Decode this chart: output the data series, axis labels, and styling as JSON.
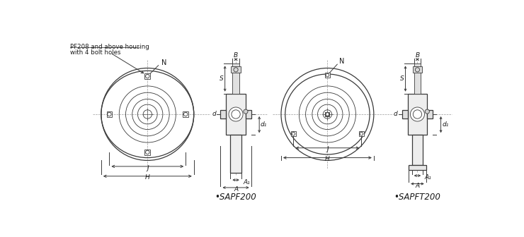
{
  "bg_color": "#ffffff",
  "line_color": "#3a3a3a",
  "dim_color": "#3a3a3a",
  "text_color": "#1a1a1a",
  "title_left": "•SAPF200",
  "title_right": "•SAPFT200",
  "note_line1": "PF208 and above housing",
  "note_line2": "with 4 bolt holes",
  "label_N": "N",
  "label_B": "B",
  "label_S": "S",
  "label_d": "d",
  "label_d1": "d₁",
  "label_A": "A",
  "label_A1": "A₁",
  "label_J": "J",
  "label_H": "H",
  "figsize": [
    7.4,
    3.36
  ],
  "dpi": 100
}
